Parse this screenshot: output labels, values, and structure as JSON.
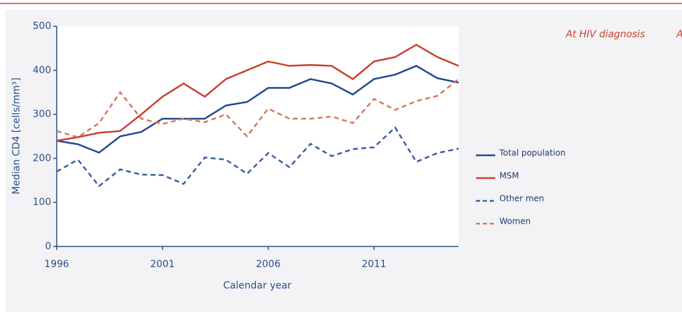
{
  "chart_data": {
    "type": "line",
    "annotations": [
      "At HIV diagnosis",
      "A"
    ],
    "xlabel": "Calendar year",
    "ylabel": "Median CD4 [cells/mm³]",
    "x": [
      1996,
      1997,
      1998,
      1999,
      2000,
      2001,
      2002,
      2003,
      2004,
      2005,
      2006,
      2007,
      2008,
      2009,
      2010,
      2011,
      2012,
      2013,
      2014,
      2015
    ],
    "xlim": [
      1996,
      2015
    ],
    "xticks": [
      1996,
      2001,
      2006,
      2011
    ],
    "ylim": [
      0,
      500
    ],
    "yticks": [
      0,
      100,
      200,
      300,
      400,
      500
    ],
    "series": [
      {
        "name": "Total population",
        "color": "#23488e",
        "dashed": false,
        "values": [
          240,
          232,
          213,
          250,
          260,
          290,
          290,
          290,
          320,
          328,
          360,
          360,
          380,
          370,
          345,
          380,
          390,
          410,
          382,
          372
        ]
      },
      {
        "name": "MSM",
        "color": "#c8402f",
        "dashed": false,
        "values": [
          240,
          248,
          258,
          262,
          300,
          340,
          370,
          340,
          380,
          400,
          420,
          410,
          412,
          410,
          380,
          420,
          430,
          458,
          430,
          410
        ]
      },
      {
        "name": "Other men",
        "color": "#3a5ea0",
        "dashed": true,
        "values": [
          170,
          197,
          137,
          175,
          163,
          162,
          142,
          202,
          197,
          165,
          212,
          180,
          233,
          205,
          221,
          225,
          270,
          192,
          212,
          222
        ]
      },
      {
        "name": "Women",
        "color": "#d7785a",
        "dashed": true,
        "values": [
          262,
          248,
          280,
          350,
          290,
          278,
          290,
          282,
          300,
          250,
          313,
          290,
          290,
          295,
          280,
          335,
          310,
          330,
          342,
          380
        ]
      }
    ]
  }
}
